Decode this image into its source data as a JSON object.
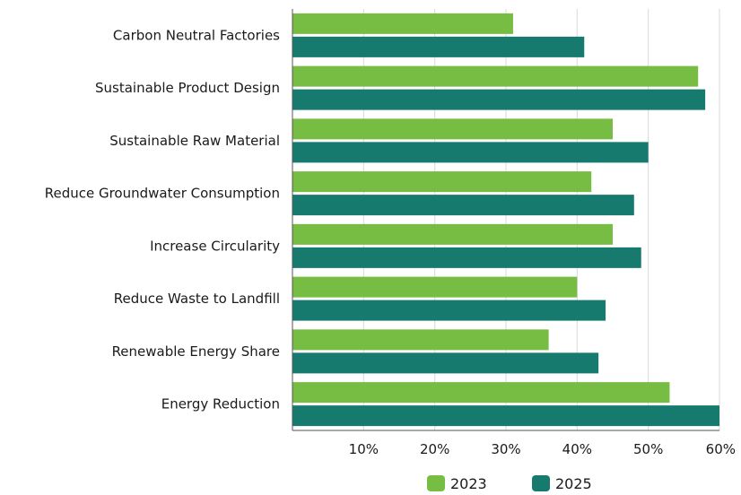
{
  "chart_data": {
    "type": "bar",
    "orientation": "horizontal",
    "categories": [
      "Carbon Neutral Factories",
      "Sustainable Product Design",
      "Sustainable Raw Material",
      "Reduce Groundwater Consumption",
      "Increase Circularity",
      "Reduce Waste to Landfill",
      "Renewable Energy Share",
      "Energy Reduction"
    ],
    "series": [
      {
        "name": "2023",
        "color": "#77bc43",
        "values": [
          31,
          57,
          45,
          42,
          45,
          40,
          36,
          53
        ]
      },
      {
        "name": "2025",
        "color": "#177a6e",
        "values": [
          41,
          58,
          50,
          48,
          49,
          44,
          43,
          60
        ]
      }
    ],
    "x_ticks": [
      "10%",
      "20%",
      "30%",
      "40%",
      "50%",
      "60%"
    ],
    "x_tick_values": [
      10,
      20,
      30,
      40,
      50,
      60
    ],
    "xlim": [
      0,
      60
    ],
    "unit": "%",
    "grid": "vertical",
    "legend_position": "bottom",
    "title": "",
    "xlabel": "",
    "ylabel": ""
  }
}
